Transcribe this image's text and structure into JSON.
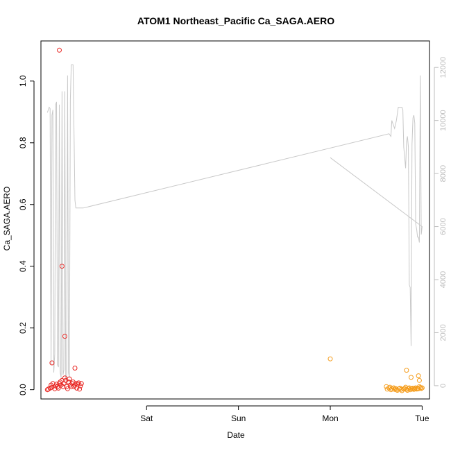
{
  "chart_data": {
    "type": "scatter",
    "title": "ATOM1 Northeast_Pacific Ca_SAGA.AERO",
    "xlabel": "Date",
    "ylabel": "Ca_SAGA.AERO",
    "x_ticks": [
      {
        "value": 1.0,
        "label": "Sat"
      },
      {
        "value": 2.0,
        "label": "Sun"
      },
      {
        "value": 3.0,
        "label": "Mon"
      },
      {
        "value": 4.0,
        "label": "Tue"
      }
    ],
    "xlim": [
      -0.15,
      4.08
    ],
    "ylim": [
      -0.03,
      1.13
    ],
    "y_ticks": [
      0.0,
      0.2,
      0.4,
      0.6,
      0.8,
      1.0
    ],
    "y_tick_labels": [
      "0.0",
      "0.2",
      "0.4",
      "0.6",
      "0.8",
      "1.0"
    ],
    "y2lim": [
      -500,
      13000
    ],
    "y2_ticks": [
      0,
      2000,
      4000,
      6000,
      8000,
      10000,
      12000
    ],
    "y2_tick_labels": [
      "0",
      "2000",
      "4000",
      "6000",
      "8000",
      "10000",
      "12000"
    ],
    "colors": {
      "series_red": "#e8231f",
      "series_orange": "#f59c1a",
      "altitude_line": "#c8c8c8",
      "axis": "#000000",
      "right_axis": "#bdbdbd"
    },
    "series": [
      {
        "color_key": "series_red",
        "x": [
          -0.08,
          -0.07,
          -0.05,
          -0.04,
          -0.03,
          -0.02,
          0.0,
          0.01,
          0.02,
          0.03,
          0.04,
          0.05,
          0.06,
          0.07,
          0.08,
          0.09,
          0.1,
          0.11,
          0.12,
          0.13,
          0.14,
          0.15,
          0.16,
          0.17,
          0.18,
          0.19,
          0.2,
          0.21,
          0.22,
          0.23,
          0.24,
          0.25,
          0.26,
          0.27,
          0.28,
          0.29,
          -0.03,
          0.05,
          0.08,
          0.11,
          0.22
        ],
        "y": [
          0.0,
          0.002,
          0.005,
          0.015,
          0.008,
          0.02,
          0.003,
          0.012,
          0.018,
          0.01,
          0.005,
          0.02,
          0.025,
          0.015,
          0.03,
          0.01,
          0.02,
          0.038,
          0.03,
          0.01,
          0.003,
          0.025,
          0.035,
          0.015,
          0.01,
          0.02,
          0.025,
          0.01,
          0.015,
          0.02,
          0.005,
          0.018,
          0.022,
          0.002,
          0.012,
          0.02,
          0.087,
          1.1,
          0.4,
          0.173,
          0.07
        ]
      },
      {
        "color_key": "series_orange",
        "x": [
          3.0,
          3.61,
          3.62,
          3.64,
          3.65,
          3.66,
          3.67,
          3.69,
          3.7,
          3.71,
          3.72,
          3.73,
          3.75,
          3.76,
          3.77,
          3.78,
          3.8,
          3.81,
          3.82,
          3.83,
          3.84,
          3.85,
          3.86,
          3.87,
          3.88,
          3.89,
          3.9,
          3.91,
          3.92,
          3.93,
          3.94,
          3.95,
          3.96,
          3.97,
          3.98,
          3.99,
          4.0,
          3.83,
          3.88,
          3.96,
          3.97
        ],
        "y": [
          0.1,
          0.01,
          0.002,
          0.005,
          0.008,
          0.0,
          0.003,
          0.006,
          0.001,
          0.004,
          0.0,
          -0.002,
          0.003,
          0.005,
          0.001,
          -0.003,
          0.002,
          0.004,
          0.008,
          0.001,
          -0.002,
          0.003,
          0.006,
          0.0,
          0.004,
          0.002,
          0.005,
          0.001,
          0.003,
          0.006,
          0.002,
          0.004,
          0.003,
          0.01,
          0.007,
          0.004,
          0.006,
          0.063,
          0.04,
          0.045,
          0.03
        ]
      }
    ],
    "altitude_line": {
      "axis": "right",
      "x": [
        -0.08,
        -0.07,
        -0.06,
        -0.05,
        -0.04,
        -0.03,
        -0.02,
        -0.01,
        0.0,
        0.01,
        0.02,
        0.03,
        0.04,
        0.05,
        0.06,
        0.07,
        0.08,
        0.09,
        0.1,
        0.11,
        0.12,
        0.13,
        0.14,
        0.15,
        0.16,
        0.17,
        0.18,
        0.19,
        0.2,
        0.21,
        0.22,
        0.23,
        0.24,
        0.25,
        0.26,
        0.27,
        0.28,
        0.29,
        0.3,
        0.31,
        3.64,
        3.66,
        3.67,
        3.68,
        3.7,
        3.72,
        3.74,
        3.76,
        3.78,
        3.79,
        3.8,
        3.82,
        3.83,
        3.84,
        3.85,
        3.86,
        3.87,
        3.88,
        3.89,
        3.9,
        3.91,
        3.92,
        3.93,
        3.94,
        3.95,
        3.96,
        3.97,
        3.98,
        3.99,
        4.0,
        3.0
      ],
      "y": [
        10300,
        10400,
        10500,
        10450,
        800,
        10200,
        10400,
        500,
        1200,
        10600,
        10700,
        800,
        700,
        10600,
        500,
        300,
        11100,
        400,
        600,
        11100,
        300,
        200,
        11700,
        500,
        300,
        10800,
        12100,
        12100,
        12100,
        9500,
        7000,
        6700,
        6700,
        6700,
        6700,
        6700,
        6700,
        6700,
        6700,
        6700,
        9500,
        9400,
        10000,
        9900,
        9700,
        10000,
        10500,
        10500,
        10500,
        10400,
        9000,
        8200,
        9200,
        9400,
        9000,
        3800,
        3700,
        1500,
        9100,
        10100,
        10200,
        9900,
        6100,
        5900,
        5600,
        5600,
        5400,
        11700,
        5700,
        6000,
        8600
      ]
    }
  }
}
